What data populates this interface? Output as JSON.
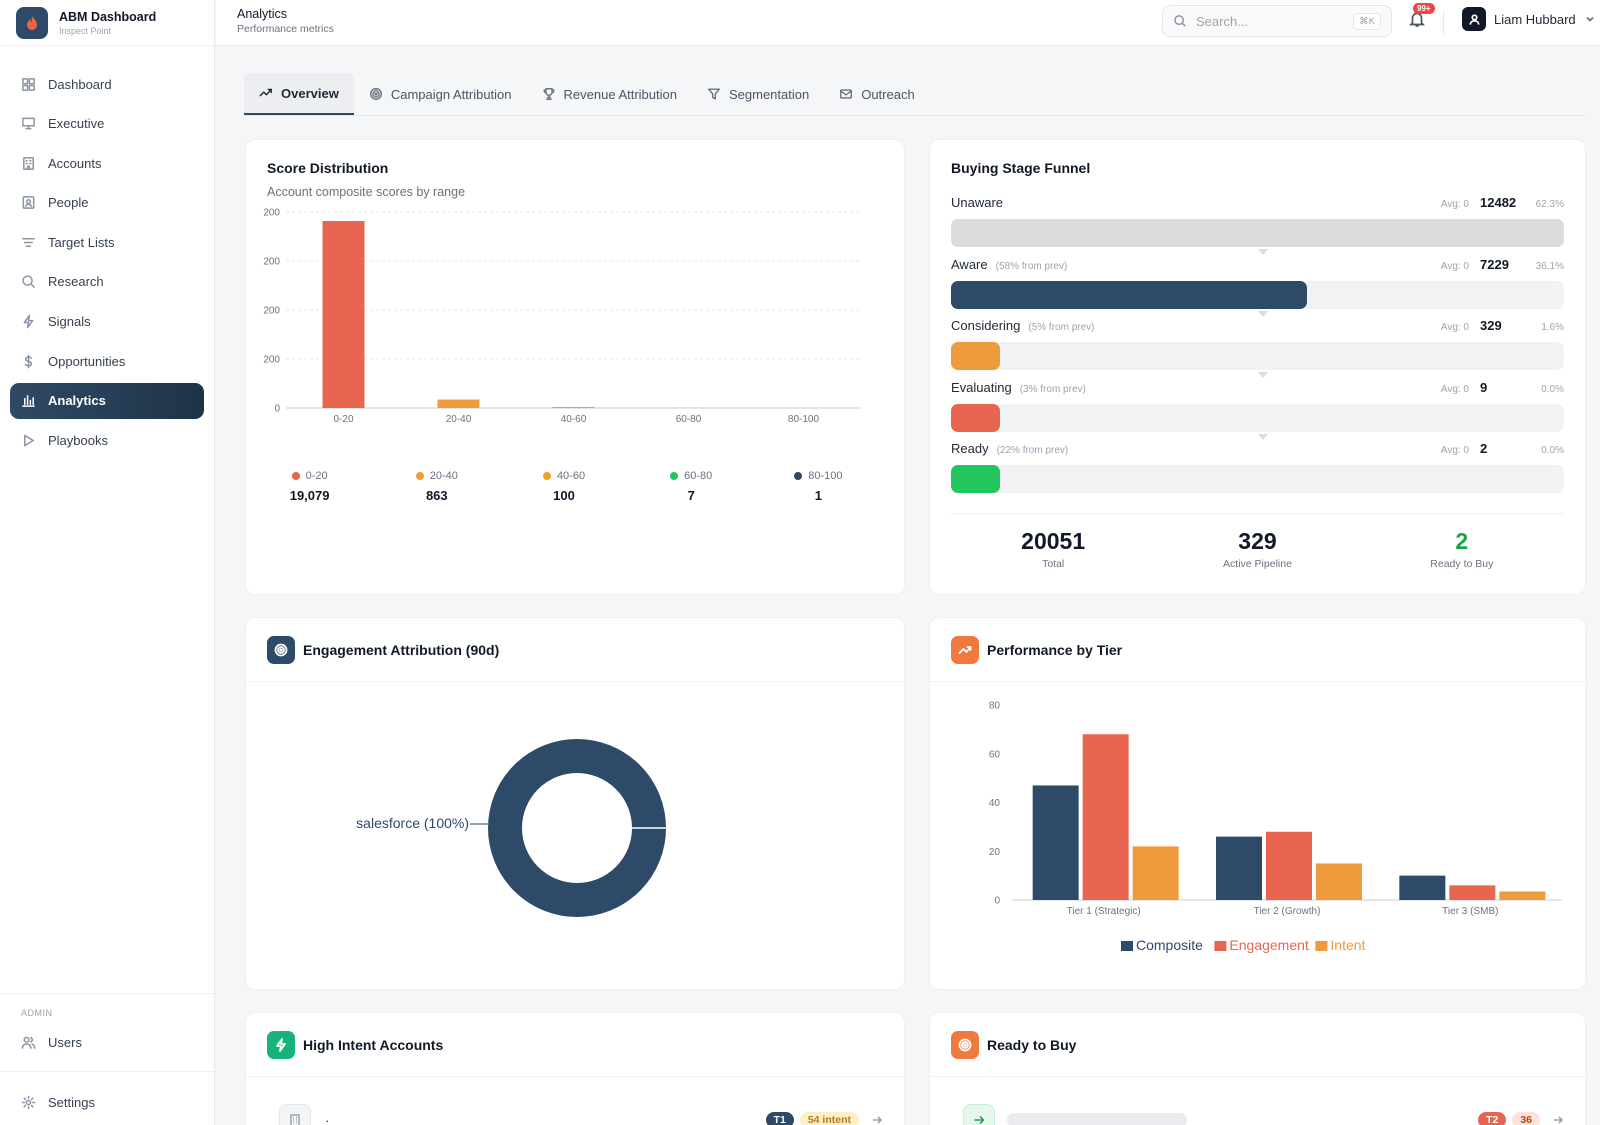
{
  "brand": {
    "title": "ABM Dashboard",
    "subtitle": "Inspect Point"
  },
  "sidebar": {
    "items": [
      {
        "label": "Dashboard",
        "icon": "grid-icon"
      },
      {
        "label": "Executive",
        "icon": "presentation-icon"
      },
      {
        "label": "Accounts",
        "icon": "building-icon"
      },
      {
        "label": "People",
        "icon": "contact-icon"
      },
      {
        "label": "Target Lists",
        "icon": "filter-lines-icon"
      },
      {
        "label": "Research",
        "icon": "search-icon"
      },
      {
        "label": "Signals",
        "icon": "bolt-icon"
      },
      {
        "label": "Opportunities",
        "icon": "dollar-icon"
      },
      {
        "label": "Analytics",
        "icon": "bar-chart-icon",
        "active": true
      },
      {
        "label": "Playbooks",
        "icon": "play-icon"
      }
    ],
    "admin_label": "ADMIN",
    "admin_items": [
      {
        "label": "Users",
        "icon": "users-icon"
      }
    ],
    "settings_label": "Settings"
  },
  "header": {
    "title": "Analytics",
    "subtitle": "Performance metrics",
    "search_placeholder": "Search...",
    "search_shortcut": "⌘K",
    "notifications_badge": "99+",
    "user_name": "Liam Hubbard"
  },
  "tabs": [
    {
      "label": "Overview",
      "icon": "trend-icon",
      "active": true
    },
    {
      "label": "Campaign Attribution",
      "icon": "target-icon"
    },
    {
      "label": "Revenue Attribution",
      "icon": "trophy-icon"
    },
    {
      "label": "Segmentation",
      "icon": "funnel-icon"
    },
    {
      "label": "Outreach",
      "icon": "mail-icon"
    }
  ],
  "score_distribution": {
    "title": "Score Distribution",
    "subtitle": "Account composite scores by range",
    "legend": [
      {
        "label": "0-20",
        "value": "19,079",
        "color": "#e8654f"
      },
      {
        "label": "20-40",
        "value": "863",
        "color": "#f09a3e"
      },
      {
        "label": "40-60",
        "value": "100",
        "color": "#f0a020"
      },
      {
        "label": "60-80",
        "value": "7",
        "color": "#22c55e"
      },
      {
        "label": "80-100",
        "value": "1",
        "color": "#2d4a68"
      }
    ]
  },
  "funnel": {
    "title": "Buying Stage Funnel",
    "stages": [
      {
        "name": "Unaware",
        "note": "",
        "avg": "Avg: 0",
        "count": "12482",
        "pct": "62.3%",
        "fill": 1.0,
        "color": "#dcdcdc"
      },
      {
        "name": "Aware",
        "note": "(58% from prev)",
        "avg": "Avg: 0",
        "count": "7229",
        "pct": "36.1%",
        "fill": 0.58,
        "color": "#2d4a68"
      },
      {
        "name": "Considering",
        "note": "(5% from prev)",
        "avg": "Avg: 0",
        "count": "329",
        "pct": "1.6%",
        "fill": 0.08,
        "color": "#f09a3e"
      },
      {
        "name": "Evaluating",
        "note": "(3% from prev)",
        "avg": "Avg: 0",
        "count": "9",
        "pct": "0.0%",
        "fill": 0.08,
        "color": "#e8654f"
      },
      {
        "name": "Ready",
        "note": "(22% from prev)",
        "avg": "Avg: 0",
        "count": "2",
        "pct": "0.0%",
        "fill": 0.08,
        "color": "#22c55e"
      }
    ],
    "stats": [
      {
        "value": "20051",
        "label": "Total",
        "color": "#111827"
      },
      {
        "value": "329",
        "label": "Active Pipeline",
        "color": "#111827"
      },
      {
        "value": "2",
        "label": "Ready to Buy",
        "color": "#16a34a"
      }
    ]
  },
  "engagement": {
    "title": "Engagement Attribution (90d)",
    "slice_label": "salesforce (100%)",
    "icon_color": "#2d4a68"
  },
  "tier_performance": {
    "title": "Performance by Tier",
    "icon_color": "#f07a3e"
  },
  "high_intent": {
    "title": "High Intent Accounts",
    "row_name": "·",
    "tier": "T1",
    "intent": "54 intent",
    "icon_color": "#16b37a"
  },
  "ready_to_buy": {
    "title": "Ready to Buy",
    "tier": "T2",
    "score": "36",
    "icon_color": "#f07a3e"
  },
  "chart_data": [
    {
      "type": "bar",
      "title": "Score Distribution",
      "categories": [
        "0-20",
        "20-40",
        "40-60",
        "60-80",
        "80-100"
      ],
      "values": [
        19079,
        863,
        100,
        7,
        1
      ],
      "colors": [
        "#e8654f",
        "#f09a3e",
        "#f0a020",
        "#22c55e",
        "#2d4a68"
      ],
      "yticks": [
        "0",
        "200",
        "200",
        "200",
        "200"
      ],
      "ylim": [
        0,
        20000
      ],
      "grid": true
    },
    {
      "type": "pie",
      "title": "Engagement Attribution (90d)",
      "categories": [
        "salesforce"
      ],
      "values": [
        100
      ],
      "colors": [
        "#2d4a68"
      ]
    },
    {
      "type": "bar",
      "title": "Performance by Tier",
      "categories": [
        "Tier 1 (Strategic)",
        "Tier 2 (Growth)",
        "Tier 3 (SMB)"
      ],
      "series": [
        {
          "name": "Composite",
          "values": [
            47,
            26,
            10
          ],
          "color": "#2d4a68"
        },
        {
          "name": "Engagement",
          "values": [
            68,
            28,
            6
          ],
          "color": "#e8654f"
        },
        {
          "name": "Intent",
          "values": [
            22,
            15,
            3.5
          ],
          "color": "#f09a3e"
        }
      ],
      "yticks": [
        0,
        20,
        40,
        60,
        80
      ],
      "ylim": [
        0,
        80
      ],
      "legend": "bottom"
    }
  ]
}
